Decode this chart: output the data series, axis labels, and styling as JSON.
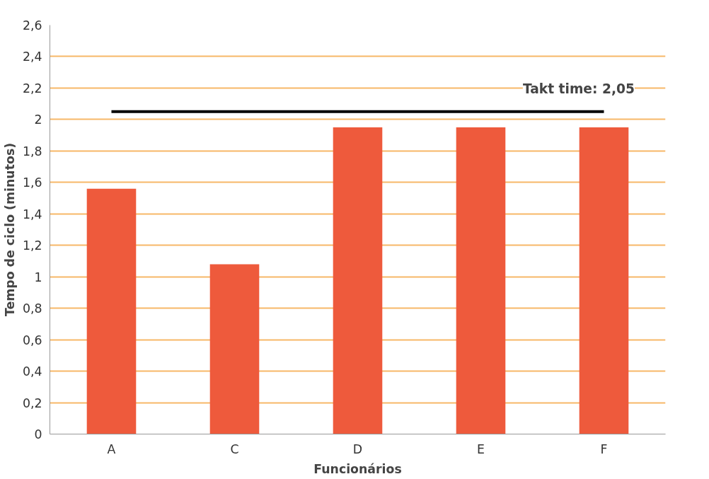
{
  "chart_data": {
    "type": "bar",
    "xlabel": "Funcionários",
    "ylabel": "Tempo de ciclo (minutos)",
    "categories": [
      "A",
      "C",
      "D",
      "E",
      "F"
    ],
    "values": [
      1.56,
      1.08,
      1.95,
      1.95,
      1.95
    ],
    "color": "#ee5a3c",
    "ylim": [
      0,
      2.6
    ],
    "yticks": [
      0,
      {
        "value": 0.2,
        "label": "0,2"
      },
      {
        "value": 0.4,
        "label": "0,4"
      },
      {
        "value": 0.6,
        "label": "0,6"
      },
      {
        "value": 0.8,
        "label": "0,8"
      },
      1,
      {
        "value": 1.2,
        "label": "1,2"
      },
      {
        "value": 1.4,
        "label": "1,4"
      },
      {
        "value": 1.6,
        "label": "1,6"
      },
      {
        "value": 1.8,
        "label": "1,8"
      },
      2,
      {
        "value": 2.2,
        "label": "2,2"
      },
      {
        "value": 2.4,
        "label": "2,4"
      },
      {
        "value": 2.6,
        "label": "2,6"
      }
    ],
    "grid": "y",
    "ref_lines": [
      {
        "axis": "y",
        "value": 2.05,
        "label": "Takt time: 2,05",
        "color": "#000000"
      }
    ]
  }
}
